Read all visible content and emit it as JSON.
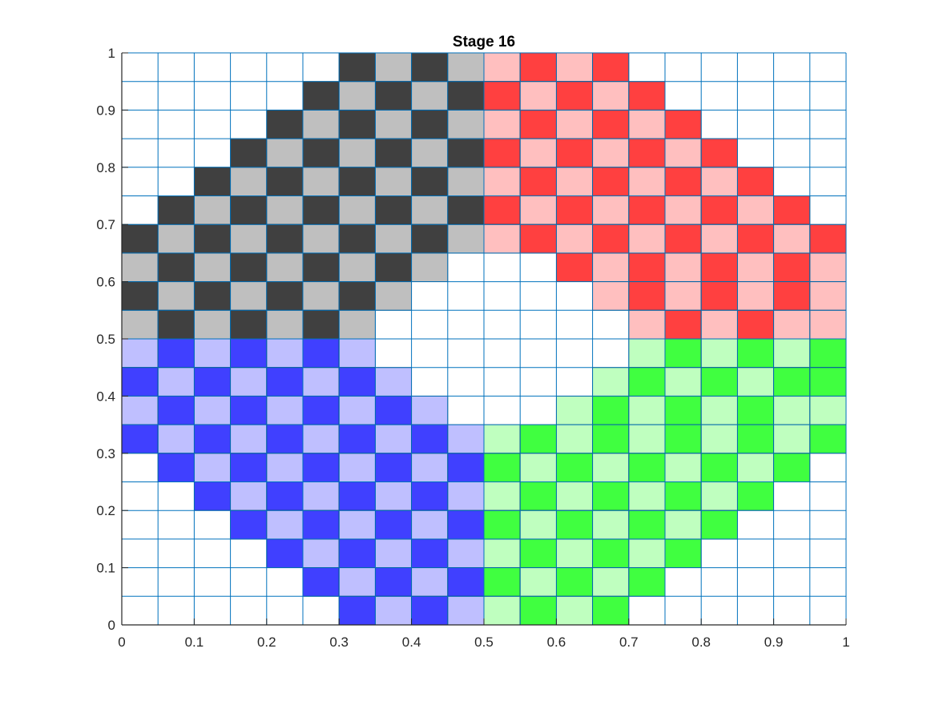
{
  "chart_data": {
    "type": "heatmap",
    "title": "Stage 16",
    "xlabel": "",
    "ylabel": "",
    "xlim": [
      0,
      1
    ],
    "ylim": [
      0,
      1
    ],
    "x_ticks": [
      "0",
      "0.1",
      "0.2",
      "0.3",
      "0.4",
      "0.5",
      "0.6",
      "0.7",
      "0.8",
      "0.9",
      "1"
    ],
    "y_ticks": [
      "0",
      "0.1",
      "0.2",
      "0.3",
      "0.4",
      "0.5",
      "0.6",
      "0.7",
      "0.8",
      "0.9",
      "1"
    ],
    "grid": true,
    "cell_size": 0.05,
    "grid_color": "#0072bd",
    "palette": {
      "K": "#404040",
      "k": "#bfbfbf",
      "R": "#ff4040",
      "r": "#ffbfbf",
      "B": "#4040ff",
      "b": "#bfbfff",
      "G": "#40ff40",
      "g": "#bfffbf"
    },
    "row_origin": "top",
    "rows": [
      "......KkKkrRrR......",
      ".....KkKkKRrRrR.....",
      "....KkKkKkrRrRrR....",
      "...KkKkKkKRrRrRrR...",
      "..KkKkKkKkrRrRrRrR..",
      ".KkKkKkKkKRrRrRrRrR.",
      "KkKkKkKkKkrRrRrRrRrR",
      "kKkKkKkKk...RrRrRrRr",
      "KkKkKkKk.....rRrRrRr",
      "kKkKkKk.......rRrRrr",
      "bBbBbBb.......gGgGgG",
      "BbBbBbBb.....gGgGgGG",
      "bBbBbBbBb...gGgGgGgg",
      "BbBbBbBbBbgGgGgGgGgG",
      ".BbBbBbBbBGgGgGgGgG.",
      "..BbBbBbBbgGgGgGgG..",
      "...BbBbBbBGgGgGgG...",
      "....BbBbBbgGgGgG....",
      ".....BbBbBGgGgG.....",
      "......BbBbgGgG......"
    ]
  }
}
